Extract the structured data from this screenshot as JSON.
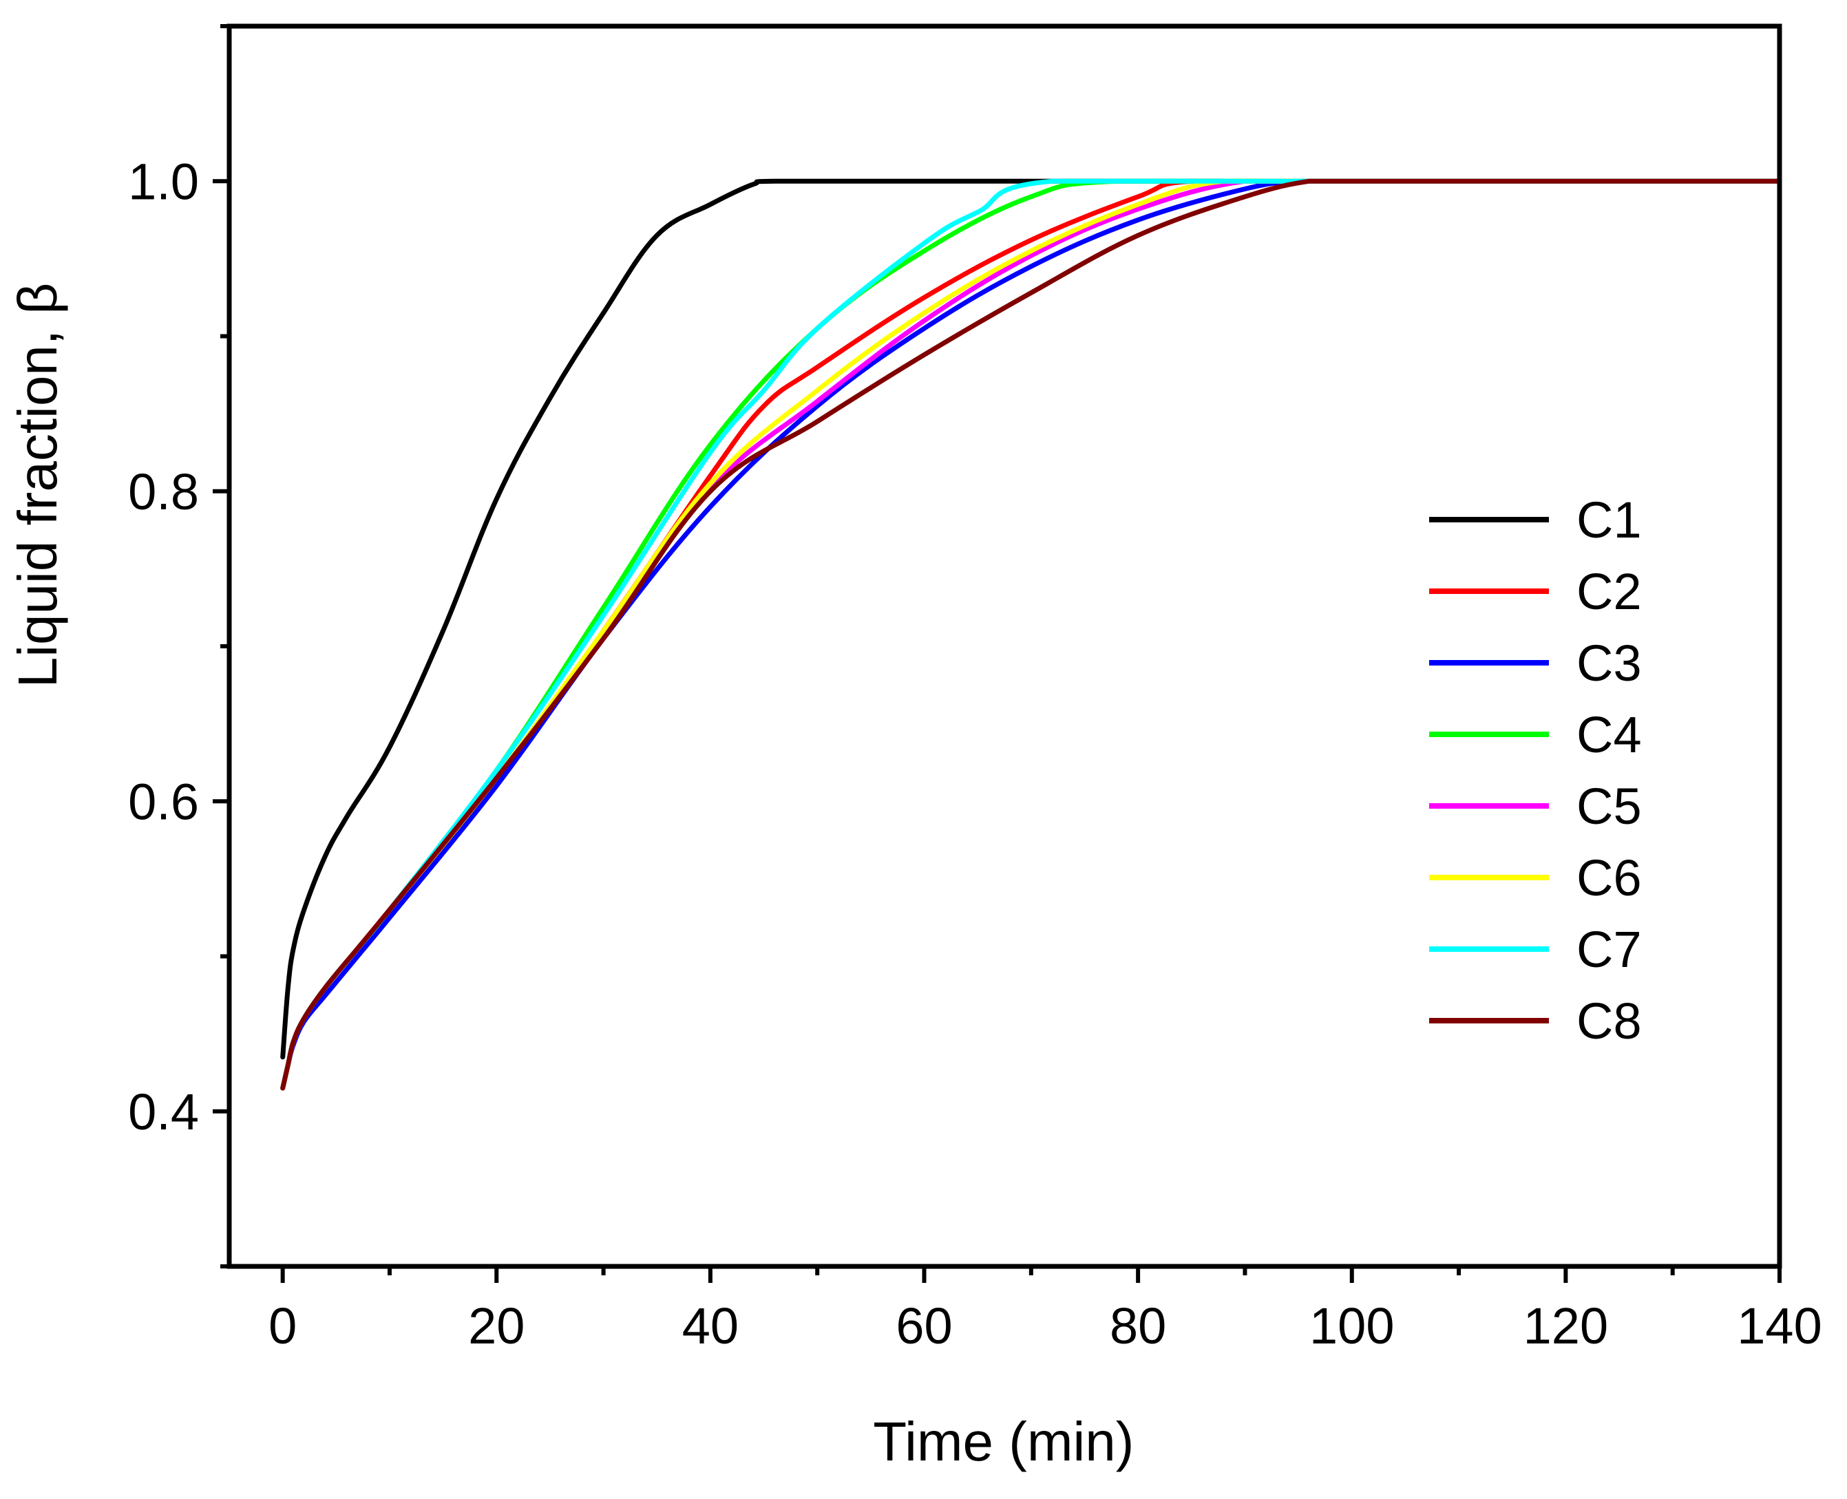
{
  "chart_data": {
    "type": "line",
    "title": "",
    "xlabel": "Time (min)",
    "ylabel": "Liquid fraction, β",
    "xlim": [
      -5,
      140
    ],
    "ylim": [
      0.3,
      1.1
    ],
    "xticks": [
      0,
      20,
      40,
      60,
      80,
      100,
      120,
      140
    ],
    "xtick_labels": [
      "0",
      "20",
      "40",
      "60",
      "80",
      "100",
      "120",
      "140"
    ],
    "yticks": [
      0.4,
      0.6,
      0.8,
      1.0
    ],
    "ytick_labels": [
      "0.4",
      "0.6",
      "0.8",
      "1.0"
    ],
    "x_minor_step": 10,
    "y_minor_step": 0.1,
    "grid": false,
    "legend_position": "center-right",
    "series": [
      {
        "name": "C1",
        "color": "#000000",
        "x": [
          0,
          0.5,
          1,
          2,
          4,
          6,
          10,
          15,
          20,
          25,
          30,
          35,
          40,
          44,
          46,
          60,
          80,
          100,
          120,
          140
        ],
        "y": [
          0.435,
          0.48,
          0.505,
          0.53,
          0.565,
          0.59,
          0.635,
          0.71,
          0.795,
          0.86,
          0.915,
          0.965,
          0.985,
          0.998,
          1.0,
          1.0,
          1.0,
          1.0,
          1.0,
          1.0
        ]
      },
      {
        "name": "C2",
        "color": "#ff0000",
        "x": [
          0,
          0.5,
          1,
          2,
          4,
          7,
          10,
          20,
          30,
          40,
          45,
          50,
          60,
          70,
          80,
          85,
          100,
          120,
          140
        ],
        "y": [
          0.415,
          0.43,
          0.445,
          0.46,
          0.48,
          0.505,
          0.53,
          0.615,
          0.71,
          0.81,
          0.855,
          0.88,
          0.925,
          0.962,
          0.99,
          1.0,
          1.0,
          1.0,
          1.0
        ]
      },
      {
        "name": "C3",
        "color": "#0000ff",
        "x": [
          0,
          0.5,
          1,
          2,
          4,
          7,
          10,
          20,
          30,
          40,
          50,
          60,
          70,
          80,
          90,
          95,
          100,
          120,
          140
        ],
        "y": [
          0.415,
          0.43,
          0.443,
          0.458,
          0.475,
          0.5,
          0.525,
          0.61,
          0.705,
          0.79,
          0.855,
          0.905,
          0.945,
          0.975,
          0.995,
          1.0,
          1.0,
          1.0,
          1.0
        ]
      },
      {
        "name": "C4",
        "color": "#00ff00",
        "x": [
          0,
          0.5,
          1,
          2,
          4,
          7,
          10,
          20,
          30,
          40,
          50,
          60,
          70,
          78,
          100,
          120,
          140
        ],
        "y": [
          0.415,
          0.43,
          0.445,
          0.46,
          0.48,
          0.505,
          0.53,
          0.62,
          0.725,
          0.83,
          0.905,
          0.955,
          0.99,
          1.0,
          1.0,
          1.0,
          1.0
        ]
      },
      {
        "name": "C5",
        "color": "#ff00ff",
        "x": [
          0,
          0.5,
          1,
          2,
          4,
          7,
          10,
          20,
          30,
          40,
          50,
          60,
          70,
          80,
          90,
          100,
          120,
          140
        ],
        "y": [
          0.415,
          0.43,
          0.445,
          0.46,
          0.48,
          0.505,
          0.53,
          0.615,
          0.708,
          0.802,
          0.858,
          0.91,
          0.952,
          0.982,
          1.0,
          1.0,
          1.0,
          1.0
        ]
      },
      {
        "name": "C6",
        "color": "#ffff00",
        "x": [
          0,
          0.5,
          1,
          2,
          4,
          7,
          10,
          20,
          30,
          40,
          50,
          60,
          70,
          80,
          88,
          100,
          120,
          140
        ],
        "y": [
          0.415,
          0.43,
          0.445,
          0.46,
          0.48,
          0.505,
          0.53,
          0.615,
          0.71,
          0.805,
          0.865,
          0.915,
          0.955,
          0.985,
          1.0,
          1.0,
          1.0,
          1.0
        ]
      },
      {
        "name": "C7",
        "color": "#00ffff",
        "x": [
          0,
          0.5,
          1,
          2,
          4,
          7,
          10,
          20,
          30,
          40,
          45,
          50,
          60,
          65,
          72,
          100,
          120,
          140
        ],
        "y": [
          0.415,
          0.43,
          0.445,
          0.46,
          0.48,
          0.505,
          0.53,
          0.62,
          0.72,
          0.825,
          0.865,
          0.905,
          0.96,
          0.98,
          1.0,
          1.0,
          1.0,
          1.0
        ]
      },
      {
        "name": "C8",
        "color": "#800000",
        "x": [
          0,
          0.5,
          1,
          2,
          4,
          7,
          10,
          20,
          30,
          40,
          50,
          60,
          70,
          80,
          90,
          96,
          100,
          120,
          140
        ],
        "y": [
          0.415,
          0.43,
          0.445,
          0.46,
          0.48,
          0.505,
          0.53,
          0.615,
          0.705,
          0.8,
          0.845,
          0.888,
          0.928,
          0.965,
          0.99,
          1.0,
          1.0,
          1.0,
          1.0
        ]
      }
    ]
  }
}
